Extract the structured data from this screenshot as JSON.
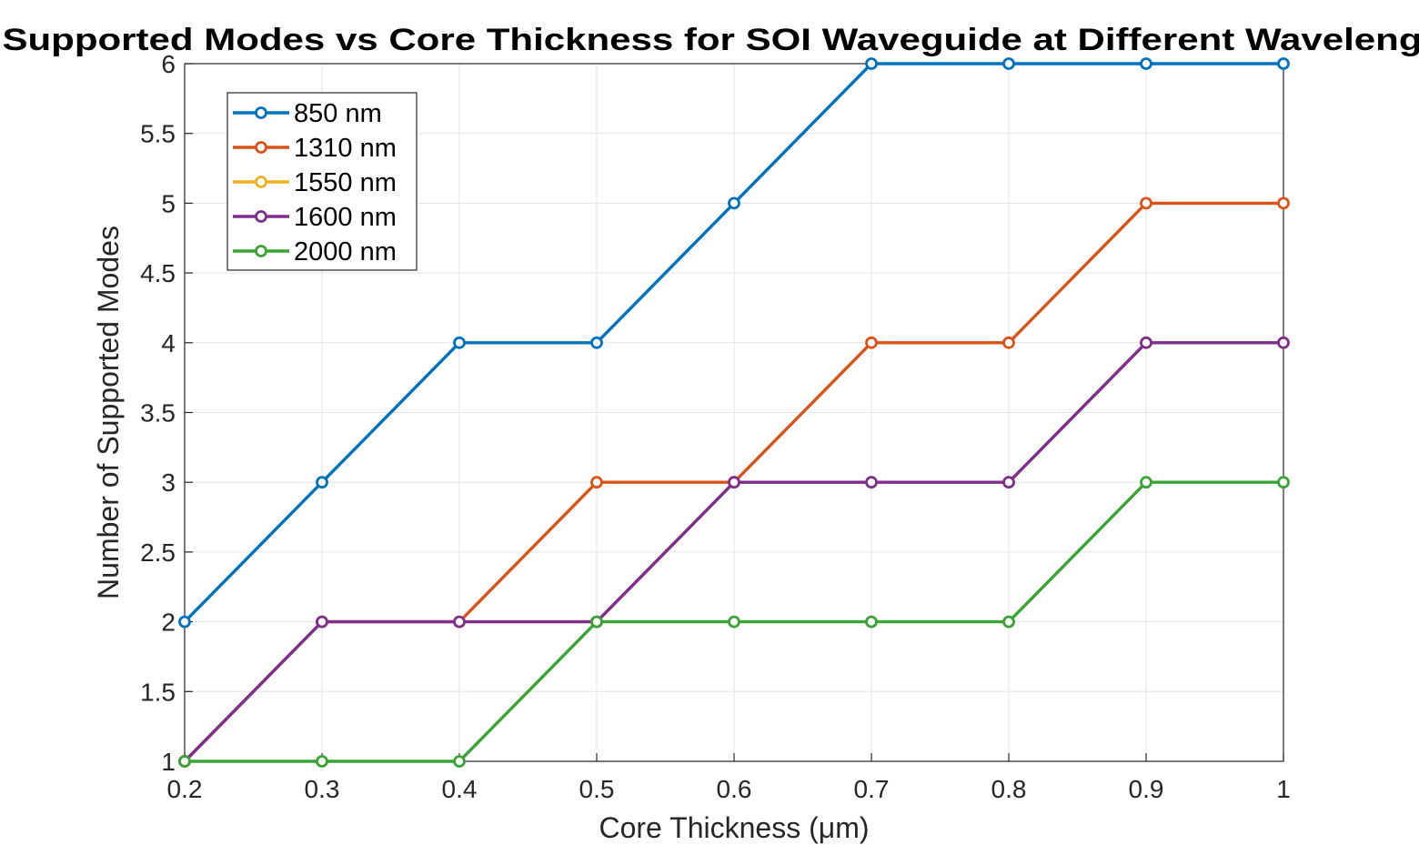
{
  "chart_data": {
    "type": "line",
    "title": "Supported Modes vs Core Thickness for SOI Waveguide at Different Wavelengt",
    "xlabel": "Core Thickness (μm)",
    "ylabel": "Number of Supported Modes",
    "x": [
      0.2,
      0.3,
      0.4,
      0.5,
      0.6,
      0.7,
      0.8,
      0.9,
      1.0
    ],
    "xlim": [
      0.2,
      1.0
    ],
    "ylim": [
      1,
      6
    ],
    "xticks": [
      "0.2",
      "0.3",
      "0.4",
      "0.5",
      "0.6",
      "0.7",
      "0.8",
      "0.9",
      "1"
    ],
    "yticks": [
      "1",
      "1.5",
      "2",
      "2.5",
      "3",
      "3.5",
      "4",
      "4.5",
      "5",
      "5.5",
      "6"
    ],
    "grid": true,
    "legend_position": "top-left",
    "series": [
      {
        "name": "850 nm",
        "color": "#0072BD",
        "values": [
          2,
          3,
          4,
          4,
          5,
          6,
          6,
          6,
          6
        ]
      },
      {
        "name": "1310 nm",
        "color": "#D95319",
        "values": [
          1,
          2,
          2,
          3,
          3,
          4,
          4,
          5,
          5
        ]
      },
      {
        "name": "1550 nm",
        "color": "#EDB120",
        "values": [
          1,
          2,
          2,
          2,
          3,
          3,
          3,
          4,
          4
        ]
      },
      {
        "name": "1600 nm",
        "color": "#7E2F8E",
        "values": [
          1,
          2,
          2,
          2,
          3,
          3,
          3,
          4,
          4
        ]
      },
      {
        "name": "2000 nm",
        "color": "#3AA335",
        "values": [
          1,
          1,
          1,
          2,
          2,
          2,
          2,
          3,
          3
        ]
      }
    ]
  }
}
